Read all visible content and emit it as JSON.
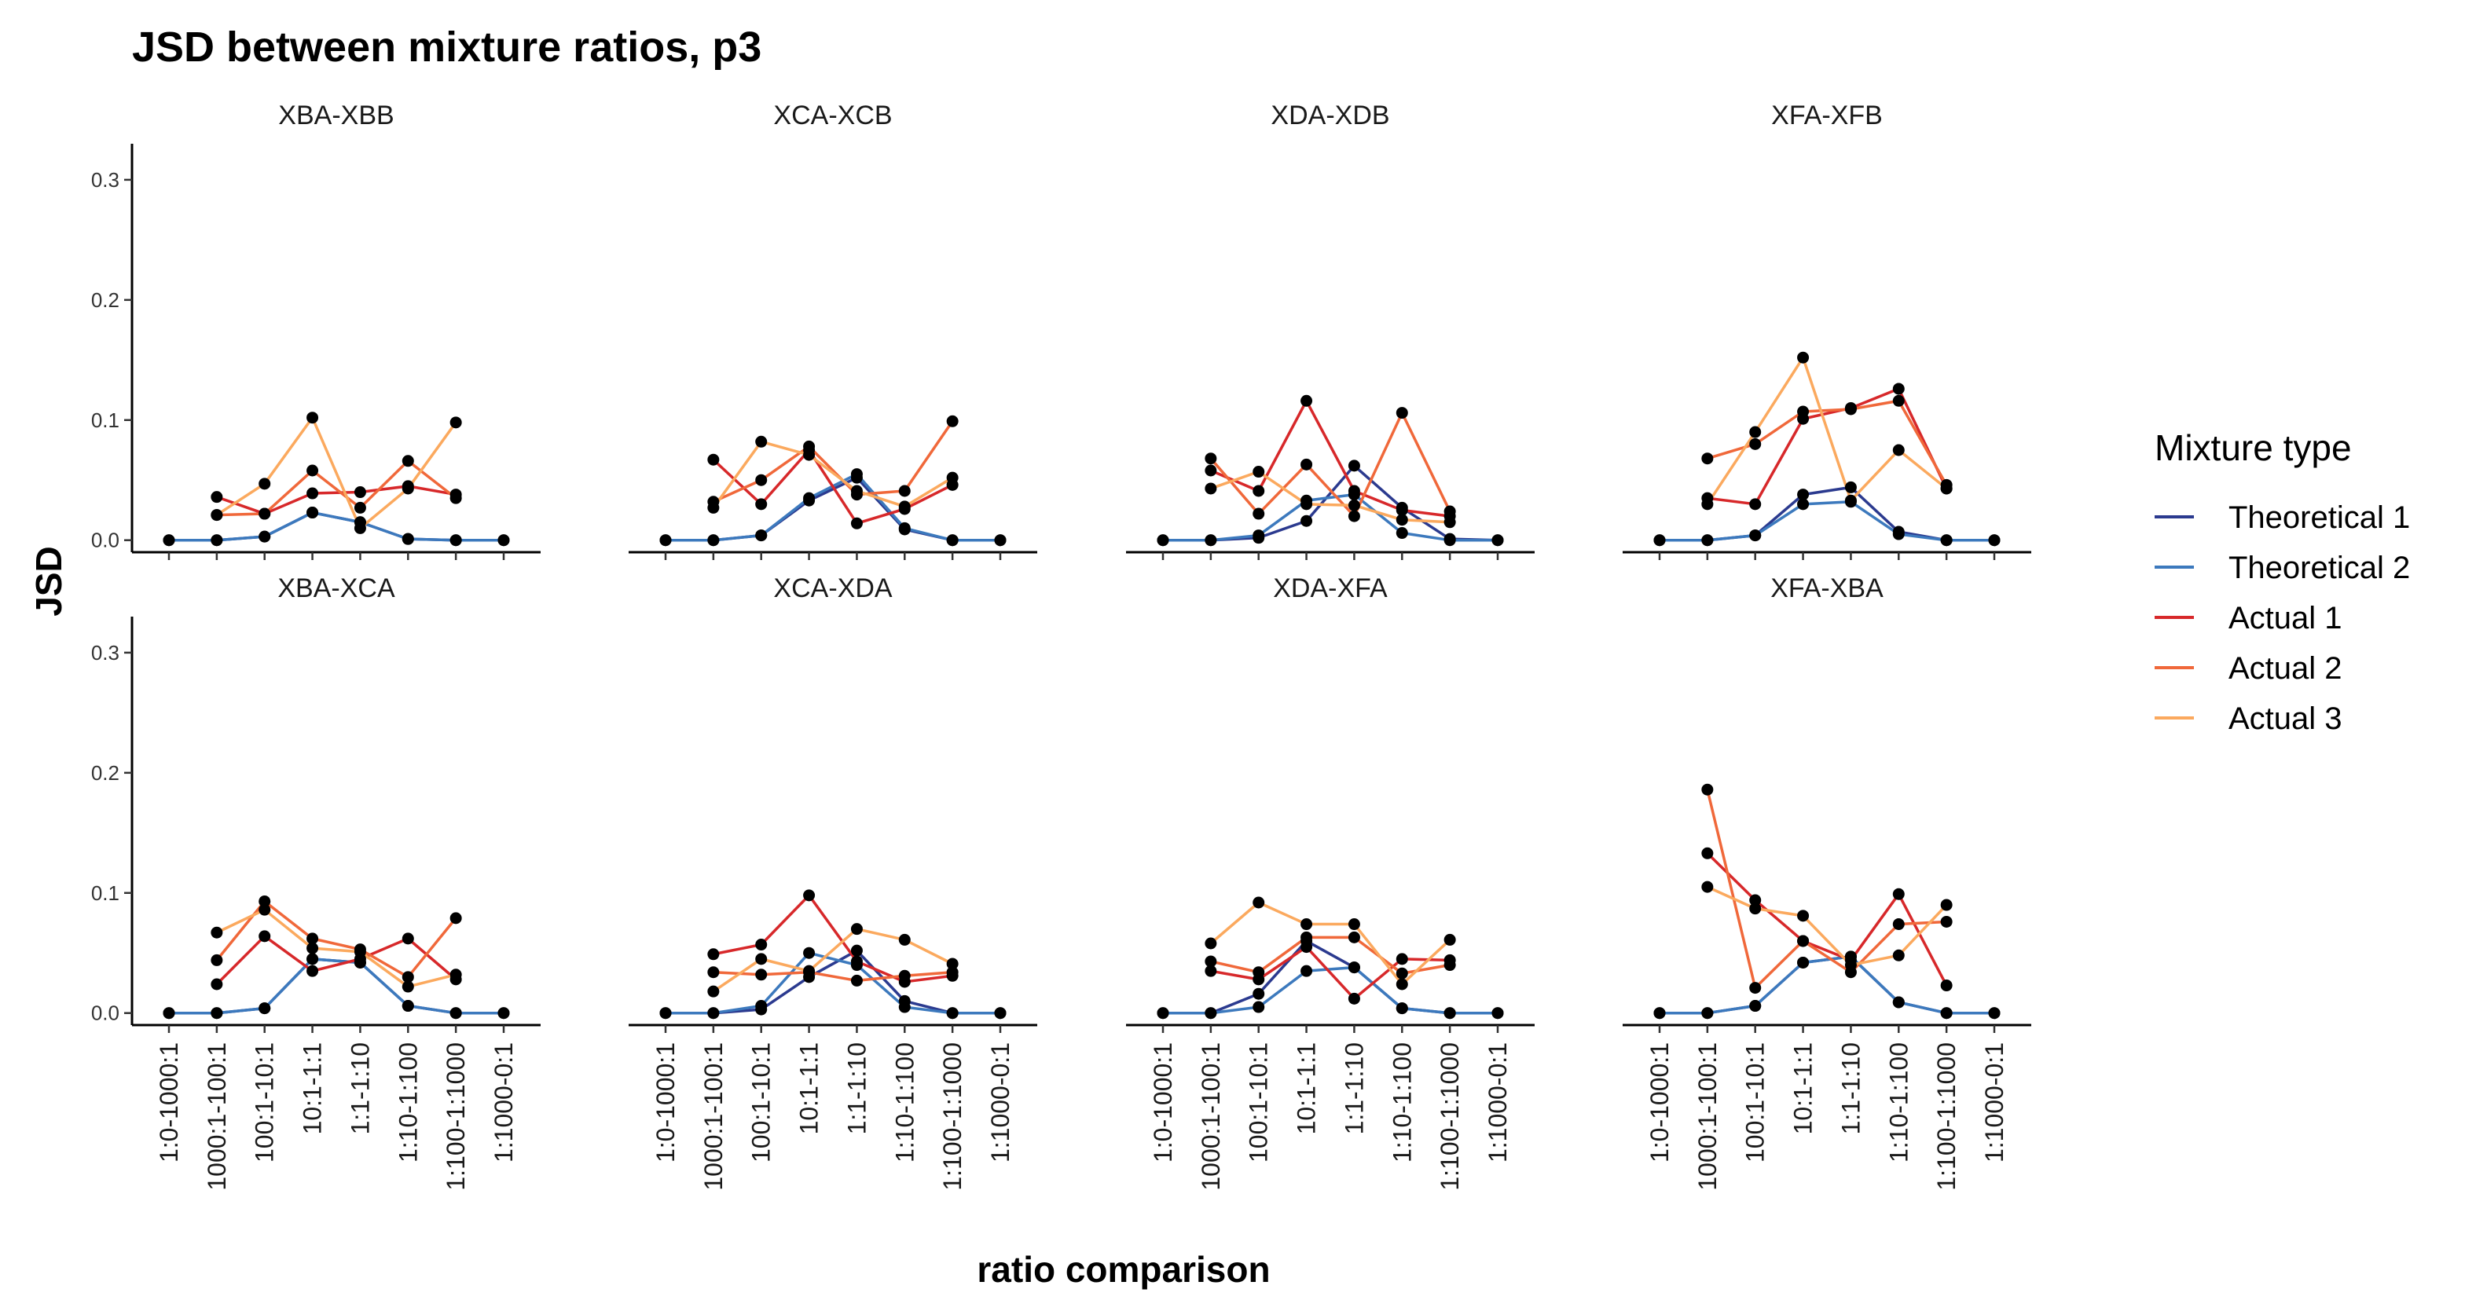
{
  "title": "JSD between mixture ratios, p3",
  "xlabel": "ratio comparison",
  "ylabel": "JSD",
  "legend": {
    "title": "Mixture type",
    "items": [
      {
        "label": "Theoretical 1",
        "color": "#2b3a8f"
      },
      {
        "label": "Theoretical 2",
        "color": "#3c79bd"
      },
      {
        "label": "Actual 1",
        "color": "#d7282a"
      },
      {
        "label": "Actual 2",
        "color": "#f0683a"
      },
      {
        "label": "Actual 3",
        "color": "#fba95e"
      }
    ]
  },
  "chart_data": {
    "type": "line",
    "layout": "facet grid 2 rows x 4 columns, shared axes",
    "categories": [
      "1:0-1000:1",
      "1000:1-100:1",
      "100:1-10:1",
      "10:1-1:1",
      "1:1-1:10",
      "1:10-1:100",
      "1:100-1:1000",
      "1:1000-0:1"
    ],
    "ylim": [
      -0.01,
      0.33
    ],
    "yticks": [
      0.0,
      0.1,
      0.2,
      0.3
    ],
    "ytick_labels": [
      "0.0",
      "0.1",
      "0.2",
      "0.3"
    ],
    "grid": false,
    "legend_position": "right",
    "series_names": [
      "Theoretical 1",
      "Theoretical 2",
      "Actual 1",
      "Actual 2",
      "Actual 3"
    ],
    "series_colors": [
      "#2b3a8f",
      "#3c79bd",
      "#d7282a",
      "#f0683a",
      "#fba95e"
    ],
    "panels": [
      {
        "label": "XBA-XBB",
        "series": [
          {
            "name": "Theoretical 1",
            "values": [
              0,
              0,
              0.003,
              0.023,
              0.015,
              0.001,
              0,
              0
            ]
          },
          {
            "name": "Theoretical 2",
            "values": [
              0,
              0,
              0.003,
              0.023,
              0.015,
              0.001,
              0,
              0
            ]
          },
          {
            "name": "Actual 1",
            "values": [
              null,
              0.036,
              0.022,
              0.039,
              0.04,
              0.045,
              0.038,
              null
            ]
          },
          {
            "name": "Actual 2",
            "values": [
              null,
              0.021,
              0.022,
              0.058,
              0.027,
              0.066,
              0.035,
              null
            ]
          },
          {
            "name": "Actual 3",
            "values": [
              null,
              0.021,
              0.047,
              0.102,
              0.01,
              0.043,
              0.098,
              null
            ]
          }
        ]
      },
      {
        "label": "XCA-XCB",
        "series": [
          {
            "name": "Theoretical 1",
            "values": [
              0,
              0,
              0.004,
              0.033,
              0.052,
              0.009,
              0,
              0
            ]
          },
          {
            "name": "Theoretical 2",
            "values": [
              0,
              0,
              0.004,
              0.035,
              0.055,
              0.01,
              0,
              0
            ]
          },
          {
            "name": "Actual 1",
            "values": [
              null,
              0.067,
              0.03,
              0.075,
              0.014,
              0.026,
              0.046,
              null
            ]
          },
          {
            "name": "Actual 2",
            "values": [
              null,
              0.032,
              0.05,
              0.078,
              0.038,
              0.041,
              0.099,
              null
            ]
          },
          {
            "name": "Actual 3",
            "values": [
              null,
              0.027,
              0.082,
              0.071,
              0.041,
              0.028,
              0.052,
              null
            ]
          }
        ]
      },
      {
        "label": "XDA-XDB",
        "series": [
          {
            "name": "Theoretical 1",
            "values": [
              0,
              0,
              0.002,
              0.016,
              0.062,
              0.027,
              0.001,
              0
            ]
          },
          {
            "name": "Theoretical 2",
            "values": [
              0,
              0,
              0.004,
              0.033,
              0.038,
              0.006,
              0,
              0
            ]
          },
          {
            "name": "Actual 1",
            "values": [
              null,
              0.058,
              0.041,
              0.116,
              0.041,
              0.025,
              0.02,
              null
            ]
          },
          {
            "name": "Actual 2",
            "values": [
              null,
              0.068,
              0.022,
              0.063,
              0.02,
              0.106,
              0.024,
              null
            ]
          },
          {
            "name": "Actual 3",
            "values": [
              null,
              0.043,
              0.057,
              0.03,
              0.029,
              0.017,
              0.015,
              null
            ]
          }
        ]
      },
      {
        "label": "XFA-XFB",
        "series": [
          {
            "name": "Theoretical 1",
            "values": [
              0,
              0,
              0.004,
              0.038,
              0.044,
              0.007,
              0,
              0
            ]
          },
          {
            "name": "Theoretical 2",
            "values": [
              0,
              0,
              0.004,
              0.03,
              0.032,
              0.005,
              0,
              0
            ]
          },
          {
            "name": "Actual 1",
            "values": [
              null,
              0.035,
              0.03,
              0.101,
              0.11,
              0.126,
              0.043,
              null
            ]
          },
          {
            "name": "Actual 2",
            "values": [
              null,
              0.068,
              0.08,
              0.107,
              0.109,
              0.116,
              0.046,
              null
            ]
          },
          {
            "name": "Actual 3",
            "values": [
              null,
              0.03,
              0.09,
              0.152,
              0.033,
              0.075,
              0.043,
              null
            ]
          }
        ]
      },
      {
        "label": "XBA-XCA",
        "series": [
          {
            "name": "Theoretical 1",
            "values": [
              0,
              0,
              0.004,
              0.045,
              0.042,
              0.006,
              0,
              0
            ]
          },
          {
            "name": "Theoretical 2",
            "values": [
              0,
              0,
              0.004,
              0.045,
              0.042,
              0.006,
              0,
              0
            ]
          },
          {
            "name": "Actual 1",
            "values": [
              null,
              0.024,
              0.064,
              0.035,
              0.045,
              0.062,
              0.028,
              null
            ]
          },
          {
            "name": "Actual 2",
            "values": [
              null,
              0.044,
              0.093,
              0.062,
              0.053,
              0.03,
              0.079,
              null
            ]
          },
          {
            "name": "Actual 3",
            "values": [
              null,
              0.067,
              0.086,
              0.054,
              0.051,
              0.022,
              0.032,
              null
            ]
          }
        ]
      },
      {
        "label": "XCA-XDA",
        "series": [
          {
            "name": "Theoretical 1",
            "values": [
              0,
              0,
              0.003,
              0.03,
              0.052,
              0.01,
              0,
              0
            ]
          },
          {
            "name": "Theoretical 2",
            "values": [
              0,
              0,
              0.006,
              0.05,
              0.04,
              0.005,
              0,
              0
            ]
          },
          {
            "name": "Actual 1",
            "values": [
              null,
              0.049,
              0.057,
              0.098,
              0.043,
              0.026,
              0.031,
              null
            ]
          },
          {
            "name": "Actual 2",
            "values": [
              null,
              0.034,
              0.032,
              0.034,
              0.027,
              0.031,
              0.034,
              null
            ]
          },
          {
            "name": "Actual 3",
            "values": [
              null,
              0.018,
              0.045,
              0.035,
              0.07,
              0.061,
              0.041,
              null
            ]
          }
        ]
      },
      {
        "label": "XDA-XFA",
        "series": [
          {
            "name": "Theoretical 1",
            "values": [
              0,
              0,
              0.016,
              0.06,
              0.038,
              0.004,
              0,
              0
            ]
          },
          {
            "name": "Theoretical 2",
            "values": [
              0,
              0,
              0.005,
              0.035,
              0.038,
              0.004,
              0,
              0
            ]
          },
          {
            "name": "Actual 1",
            "values": [
              null,
              0.035,
              0.028,
              0.055,
              0.012,
              0.045,
              0.044,
              null
            ]
          },
          {
            "name": "Actual 2",
            "values": [
              null,
              0.043,
              0.034,
              0.063,
              0.063,
              0.033,
              0.04,
              null
            ]
          },
          {
            "name": "Actual 3",
            "values": [
              null,
              0.058,
              0.092,
              0.074,
              0.074,
              0.024,
              0.061,
              null
            ]
          }
        ]
      },
      {
        "label": "XFA-XBA",
        "series": [
          {
            "name": "Theoretical 1",
            "values": [
              0,
              0,
              0.006,
              0.042,
              0.047,
              0.009,
              0,
              0
            ]
          },
          {
            "name": "Theoretical 2",
            "values": [
              0,
              0,
              0.006,
              0.042,
              0.047,
              0.009,
              0,
              0
            ]
          },
          {
            "name": "Actual 1",
            "values": [
              null,
              0.133,
              0.094,
              0.06,
              0.044,
              0.099,
              0.023,
              null
            ]
          },
          {
            "name": "Actual 2",
            "values": [
              null,
              0.186,
              0.021,
              0.06,
              0.034,
              0.074,
              0.076,
              null
            ]
          },
          {
            "name": "Actual 3",
            "values": [
              null,
              0.105,
              0.087,
              0.081,
              0.04,
              0.048,
              0.09,
              null
            ]
          }
        ]
      }
    ]
  }
}
